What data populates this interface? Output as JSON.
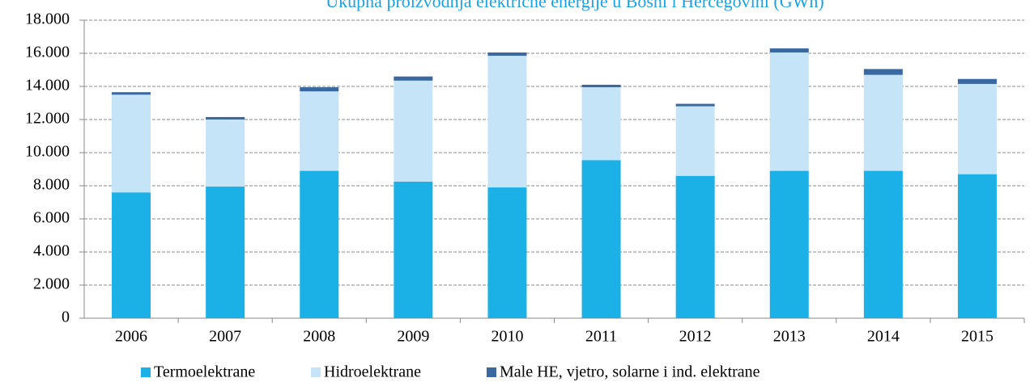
{
  "chart_data": {
    "type": "stacked_bar",
    "title": "Ukupna proizvodnja električne energije u Bosni i Hercegovini (GWh)",
    "categories": [
      "2006",
      "2007",
      "2008",
      "2009",
      "2010",
      "2011",
      "2012",
      "2013",
      "2014",
      "2015"
    ],
    "series": [
      {
        "name": "Termoelektrane",
        "color": "#1bb1e7",
        "values": [
          7600,
          7950,
          8900,
          8250,
          7900,
          9550,
          8600,
          8900,
          8900,
          8700
        ]
      },
      {
        "name": "Hidroelektrane",
        "color": "#c6e4f7",
        "values": [
          5900,
          4050,
          4800,
          6100,
          7950,
          4400,
          4200,
          7150,
          5800,
          5450
        ]
      },
      {
        "name": "Male HE, vjetro, solarne i ind. elektrane",
        "color": "#3a68a0",
        "values": [
          150,
          150,
          250,
          250,
          200,
          150,
          150,
          250,
          350,
          300
        ]
      }
    ],
    "ylim": [
      0,
      18000
    ],
    "yticks": [
      0,
      {
        "value": 2000,
        "label": "2.000"
      },
      {
        "value": 4000,
        "label": "4.000"
      },
      {
        "value": 6000,
        "label": "6.000"
      },
      {
        "value": 8000,
        "label": "8.000"
      },
      {
        "value": 10000,
        "label": "10.000"
      },
      {
        "value": 12000,
        "label": "12.000"
      },
      {
        "value": 14000,
        "label": "14.000"
      },
      {
        "value": 16000,
        "label": "16.000"
      },
      {
        "value": 18000,
        "label": "18.000"
      }
    ],
    "grid": true,
    "legend": "bottom"
  }
}
